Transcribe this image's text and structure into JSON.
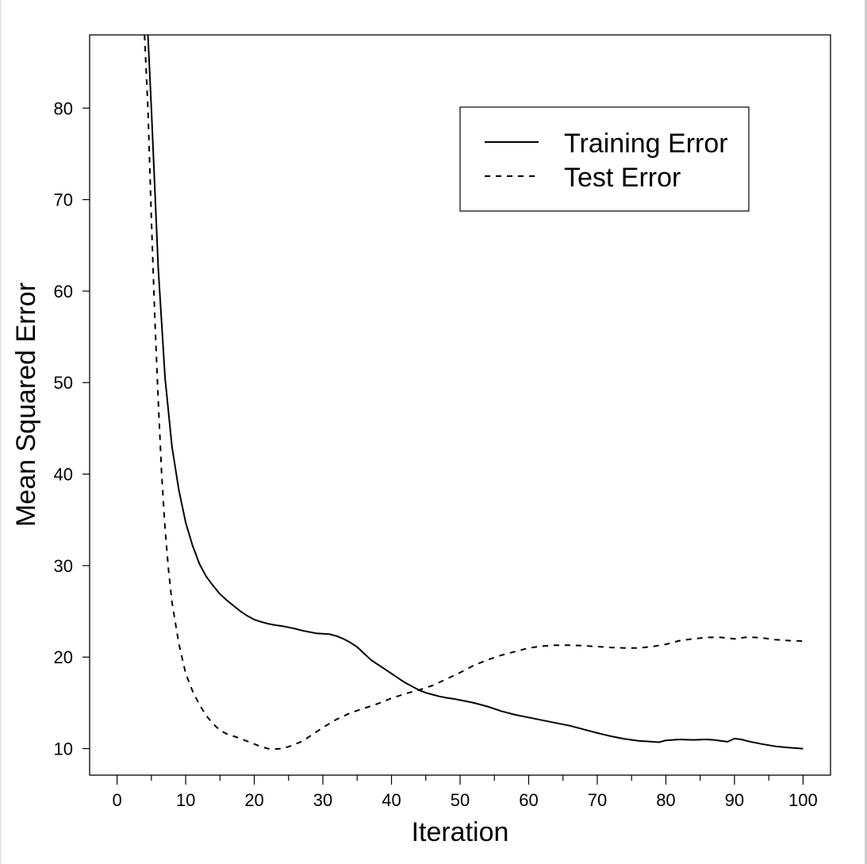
{
  "chart_data": {
    "type": "line",
    "xlabel": "Iteration",
    "ylabel": "Mean Squared Error",
    "xlim": [
      -4,
      104
    ],
    "ylim": [
      7.1,
      88
    ],
    "x_ticks": [
      0,
      10,
      20,
      30,
      40,
      50,
      60,
      70,
      80,
      90,
      100
    ],
    "x_minor_ticks": [
      5,
      15,
      25,
      35,
      45,
      55,
      65,
      75,
      85,
      95
    ],
    "y_ticks": [
      10,
      20,
      30,
      40,
      50,
      60,
      70,
      80
    ],
    "grid": false,
    "legend_position": "top-right",
    "series": [
      {
        "name": "Training Error",
        "style": "solid",
        "color": "#000000",
        "x": [
          4.5,
          5,
          6,
          7,
          8,
          9,
          10,
          11,
          12,
          13,
          14,
          15,
          16,
          17,
          18,
          19,
          20,
          21,
          22,
          23,
          24,
          25,
          26,
          27,
          28,
          29,
          30,
          31,
          32,
          33,
          34,
          35,
          36,
          37,
          38,
          39,
          40,
          41,
          42,
          43,
          44,
          45,
          46,
          47,
          48,
          49,
          50,
          52,
          54,
          56,
          58,
          60,
          62,
          64,
          66,
          68,
          70,
          72,
          74,
          76,
          78,
          79,
          80,
          82,
          84,
          86,
          87,
          88,
          89,
          90,
          91,
          92,
          94,
          96,
          98,
          100
        ],
        "y": [
          88,
          80,
          62.5,
          50.5,
          43,
          38.3,
          34.7,
          32.2,
          30.2,
          28.8,
          27.8,
          26.9,
          26.2,
          25.6,
          25.0,
          24.5,
          24.1,
          23.85,
          23.65,
          23.5,
          23.4,
          23.25,
          23.1,
          22.9,
          22.75,
          22.6,
          22.55,
          22.5,
          22.3,
          22.0,
          21.6,
          21.1,
          20.4,
          19.7,
          19.2,
          18.7,
          18.2,
          17.7,
          17.2,
          16.8,
          16.4,
          16.1,
          15.9,
          15.7,
          15.55,
          15.45,
          15.3,
          15.0,
          14.6,
          14.1,
          13.7,
          13.4,
          13.1,
          12.8,
          12.5,
          12.1,
          11.7,
          11.35,
          11.05,
          10.85,
          10.75,
          10.7,
          10.9,
          11.0,
          10.95,
          11.0,
          10.95,
          10.85,
          10.75,
          11.1,
          11.0,
          10.8,
          10.5,
          10.25,
          10.1,
          10.0
        ]
      },
      {
        "name": "Test Error",
        "style": "dashed",
        "color": "#000000",
        "x": [
          4,
          4.5,
          5,
          5.5,
          6,
          6.5,
          7,
          7.5,
          8,
          9,
          10,
          11,
          12,
          13,
          14,
          15,
          16,
          18,
          20,
          21,
          22,
          23,
          24,
          25,
          26,
          27,
          28,
          30,
          32,
          34,
          36,
          38,
          40,
          42,
          44,
          46,
          48,
          50,
          52,
          54,
          56,
          58,
          60,
          62,
          64,
          66,
          68,
          70,
          72,
          74,
          76,
          78,
          80,
          82,
          84,
          86,
          88,
          90,
          92,
          94,
          96,
          98,
          100
        ],
        "y": [
          88,
          80,
          68,
          57,
          48,
          40,
          34,
          29.5,
          26,
          21.5,
          18.2,
          16.3,
          14.8,
          13.6,
          12.7,
          12.0,
          11.6,
          11.1,
          10.5,
          10.2,
          10.0,
          9.95,
          10.0,
          10.2,
          10.5,
          10.8,
          11.3,
          12.3,
          13.2,
          13.9,
          14.4,
          14.9,
          15.5,
          16.0,
          16.4,
          16.9,
          17.6,
          18.3,
          19.1,
          19.7,
          20.2,
          20.6,
          21.0,
          21.2,
          21.3,
          21.3,
          21.25,
          21.15,
          21.05,
          21.0,
          21.0,
          21.15,
          21.4,
          21.8,
          22.0,
          22.15,
          22.15,
          22.0,
          22.2,
          22.1,
          21.9,
          21.8,
          21.75
        ]
      }
    ]
  }
}
